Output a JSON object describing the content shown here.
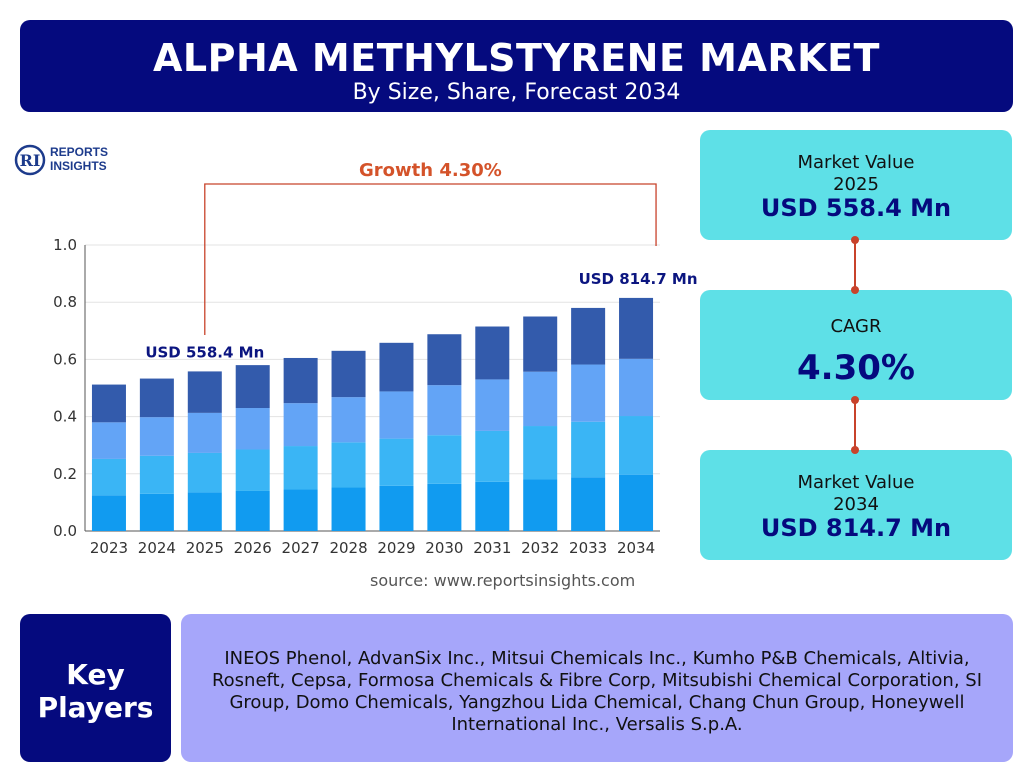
{
  "header": {
    "title": "ALPHA METHYLSTYRENE MARKET",
    "subtitle": "By Size, Share, Forecast 2034"
  },
  "logo": {
    "line1": "REPORTS",
    "line2": "INSIGHTS",
    "mark": "RI"
  },
  "chart_data": {
    "type": "bar",
    "stacked": true,
    "categories": [
      "2023",
      "2024",
      "2025",
      "2026",
      "2027",
      "2028",
      "2029",
      "2030",
      "2031",
      "2032",
      "2033",
      "2034"
    ],
    "series": [
      {
        "values": [
          0.125,
          0.13,
          0.135,
          0.14,
          0.145,
          0.152,
          0.158,
          0.165,
          0.172,
          0.18,
          0.188,
          0.197
        ],
        "color": "#119bf0"
      },
      {
        "values": [
          0.127,
          0.133,
          0.138,
          0.145,
          0.152,
          0.158,
          0.165,
          0.17,
          0.178,
          0.187,
          0.194,
          0.205
        ],
        "color": "#3ab5f5"
      },
      {
        "values": [
          0.128,
          0.135,
          0.14,
          0.145,
          0.15,
          0.158,
          0.165,
          0.175,
          0.18,
          0.19,
          0.2,
          0.2
        ],
        "color": "#63a4f6"
      },
      {
        "values": [
          0.132,
          0.135,
          0.145,
          0.15,
          0.158,
          0.162,
          0.17,
          0.178,
          0.185,
          0.193,
          0.198,
          0.213
        ],
        "color": "#335bac"
      }
    ],
    "ylim": [
      0,
      1.0
    ],
    "yticks": [
      "0.0",
      "0.2",
      "0.4",
      "0.6",
      "0.8",
      "1.0"
    ],
    "ytick_values": [
      0,
      0.2,
      0.4,
      0.6,
      0.8,
      1.0
    ],
    "grid": true,
    "annotations": {
      "growth_label": "Growth 4.30%",
      "start_label": "USD 558.4 Mn",
      "end_label": "USD 814.7 Mn",
      "start_category": "2025",
      "end_category": "2034"
    }
  },
  "source": "source: www.reportsinsights.com",
  "cards": [
    {
      "line1": "Market Value",
      "line2": "2025",
      "value": "USD 558.4 Mn"
    },
    {
      "line1": "CAGR",
      "line2": "",
      "value": "4.30%"
    },
    {
      "line1": "Market Value",
      "line2": "2034",
      "value": "USD 814.7 Mn"
    }
  ],
  "key_players": {
    "label_line1": "Key",
    "label_line2": "Players",
    "text": "INEOS Phenol, AdvanSix Inc., Mitsui Chemicals Inc., Kumho P&B Chemicals, Altivia, Rosneft, Cepsa, Formosa Chemicals & Fibre Corp, Mitsubishi Chemical Corporation, SI Group, Domo Chemicals, Yangzhou Lida Chemical, Chang Chun Group, Honeywell International Inc., Versalis S.p.A."
  },
  "colors": {
    "navy": "#050a7e",
    "cyan_card": "#5ee0e7",
    "accent_red": "#c8432b",
    "players_bg": "#a6a6fa"
  }
}
